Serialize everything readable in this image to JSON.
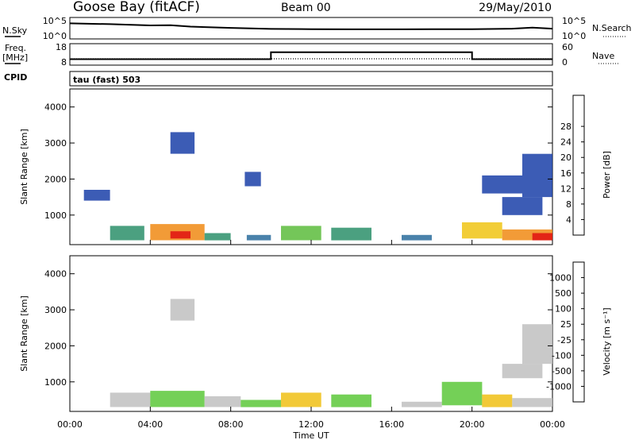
{
  "header": {
    "station": "Goose Bay (fitACF)",
    "beam": "Beam 00",
    "date": "29/May/2010"
  },
  "top_panels": {
    "nsky_label": "N.Sky",
    "nsky_ticks": [
      "10^5",
      "10^0"
    ],
    "nsearch_label": "N.Search",
    "nsearch_ticks": [
      "10^5",
      "10^0"
    ],
    "freq_label": "Freq.",
    "freq_unit": "[MHz]",
    "freq_ticks": [
      "18",
      "8"
    ],
    "nave_label": "Nave",
    "nave_ticks": [
      "60",
      "0"
    ],
    "cpid_label": "CPID",
    "cpid_text": "tau (fast) 503"
  },
  "chart_data": [
    {
      "type": "line",
      "name": "N.Sky",
      "x": [
        "00:00",
        "02:00",
        "04:00",
        "05:00",
        "06:00",
        "08:00",
        "10:00",
        "12:00",
        "14:00",
        "16:00",
        "18:00",
        "20:00",
        "22:00",
        "23:00",
        "24:00"
      ],
      "y": [
        10000,
        6000,
        2500,
        3000,
        1200,
        500,
        250,
        220,
        200,
        200,
        210,
        220,
        300,
        600,
        300
      ],
      "yscale": "log",
      "ylim": [
        1,
        100000
      ]
    },
    {
      "type": "line",
      "name": "Freq.",
      "x": [
        "00:00",
        "10:00",
        "10:00",
        "20:00",
        "20:00",
        "24:00"
      ],
      "y": [
        10.5,
        10.5,
        14.5,
        14.5,
        10.5,
        10.5
      ],
      "ylim": [
        8,
        18
      ]
    },
    {
      "type": "heatmap",
      "name": "Power",
      "xlabel": "Time UT",
      "ylabel": "Slant Range [km]",
      "x_ticks": [
        "00:00",
        "04:00",
        "08:00",
        "12:00",
        "16:00",
        "20:00",
        "00:00"
      ],
      "y_ticks": [
        "1000",
        "2000",
        "3000",
        "4000"
      ],
      "ylim": [
        180,
        4500
      ],
      "colorbar": {
        "label": "Power [dB]",
        "ticks": [
          "4",
          "8",
          "12",
          "16",
          "20",
          "24",
          "28"
        ],
        "colors": [
          "#0018ff",
          "#1a3fa8",
          "#2a6c9c",
          "#2c8f6a",
          "#5cbc3c",
          "#f0c414",
          "#f08a14",
          "#e85010",
          "#e01010"
        ]
      },
      "regions": [
        {
          "t0": 2.0,
          "t1": 3.7,
          "r0": 300,
          "r1": 700,
          "level": 3
        },
        {
          "t0": 4.0,
          "t1": 6.7,
          "r0": 300,
          "r1": 750,
          "level": 6
        },
        {
          "t0": 5.0,
          "t1": 6.0,
          "r0": 350,
          "r1": 550,
          "level": 8
        },
        {
          "t0": 6.7,
          "t1": 8.0,
          "r0": 300,
          "r1": 500,
          "level": 3
        },
        {
          "t0": 8.8,
          "t1": 10.0,
          "r0": 300,
          "r1": 450,
          "level": 2
        },
        {
          "t0": 10.5,
          "t1": 12.5,
          "r0": 300,
          "r1": 700,
          "level": 4
        },
        {
          "t0": 13.0,
          "t1": 15.0,
          "r0": 300,
          "r1": 650,
          "level": 3
        },
        {
          "t0": 16.5,
          "t1": 18.0,
          "r0": 300,
          "r1": 450,
          "level": 2
        },
        {
          "t0": 19.5,
          "t1": 21.5,
          "r0": 350,
          "r1": 800,
          "level": 5
        },
        {
          "t0": 21.5,
          "t1": 24.0,
          "r0": 300,
          "r1": 600,
          "level": 6
        },
        {
          "t0": 23.0,
          "t1": 24.0,
          "r0": 300,
          "r1": 500,
          "level": 8
        },
        {
          "t0": 5.0,
          "t1": 6.2,
          "r0": 2700,
          "r1": 3300,
          "level": 1
        },
        {
          "t0": 0.7,
          "t1": 2.0,
          "r0": 1400,
          "r1": 1700,
          "level": 1
        },
        {
          "t0": 8.7,
          "t1": 9.5,
          "r0": 1800,
          "r1": 2200,
          "level": 1
        },
        {
          "t0": 21.5,
          "t1": 23.5,
          "r0": 1000,
          "r1": 1500,
          "level": 1
        },
        {
          "t0": 20.5,
          "t1": 22.5,
          "r0": 1600,
          "r1": 2100,
          "level": 1
        },
        {
          "t0": 22.5,
          "t1": 24.0,
          "r0": 1500,
          "r1": 2700,
          "level": 1
        }
      ]
    },
    {
      "type": "heatmap",
      "name": "Velocity",
      "xlabel": "Time UT",
      "ylabel": "Slant Range [km]",
      "x_ticks": [
        "00:00",
        "04:00",
        "08:00",
        "12:00",
        "16:00",
        "20:00",
        "00:00"
      ],
      "y_ticks": [
        "1000",
        "2000",
        "3000",
        "4000"
      ],
      "ylim": [
        180,
        4500
      ],
      "colorbar": {
        "label": "Velocity [m s⁻¹]",
        "ticks": [
          "1000",
          "500",
          "100",
          "25",
          "-25",
          "-100",
          "-500",
          "-1000"
        ],
        "colors": [
          "#1a2fb0",
          "#2c6aa8",
          "#2f8a60",
          "#5cc83a",
          "#c0c0c0",
          "#f0c014",
          "#f08a14",
          "#e85010",
          "#e01010"
        ]
      },
      "regions": [
        {
          "t0": 2.0,
          "t1": 4.0,
          "r0": 300,
          "r1": 700,
          "level": 4
        },
        {
          "t0": 4.0,
          "t1": 6.7,
          "r0": 300,
          "r1": 750,
          "level": 3
        },
        {
          "t0": 6.7,
          "t1": 8.5,
          "r0": 300,
          "r1": 600,
          "level": 4
        },
        {
          "t0": 8.5,
          "t1": 10.5,
          "r0": 300,
          "r1": 500,
          "level": 3
        },
        {
          "t0": 10.5,
          "t1": 12.5,
          "r0": 300,
          "r1": 700,
          "level": 5
        },
        {
          "t0": 13.0,
          "t1": 15.0,
          "r0": 300,
          "r1": 650,
          "level": 3
        },
        {
          "t0": 16.5,
          "t1": 18.5,
          "r0": 300,
          "r1": 450,
          "level": 4
        },
        {
          "t0": 18.5,
          "t1": 20.5,
          "r0": 350,
          "r1": 1000,
          "level": 3
        },
        {
          "t0": 20.5,
          "t1": 22.0,
          "r0": 300,
          "r1": 650,
          "level": 5
        },
        {
          "t0": 22.0,
          "t1": 24.0,
          "r0": 300,
          "r1": 550,
          "level": 4
        },
        {
          "t0": 5.0,
          "t1": 6.2,
          "r0": 2700,
          "r1": 3300,
          "level": 4
        },
        {
          "t0": 21.5,
          "t1": 23.5,
          "r0": 1100,
          "r1": 1500,
          "level": 4
        },
        {
          "t0": 22.5,
          "t1": 24.0,
          "r0": 1500,
          "r1": 2600,
          "level": 4
        }
      ]
    }
  ]
}
